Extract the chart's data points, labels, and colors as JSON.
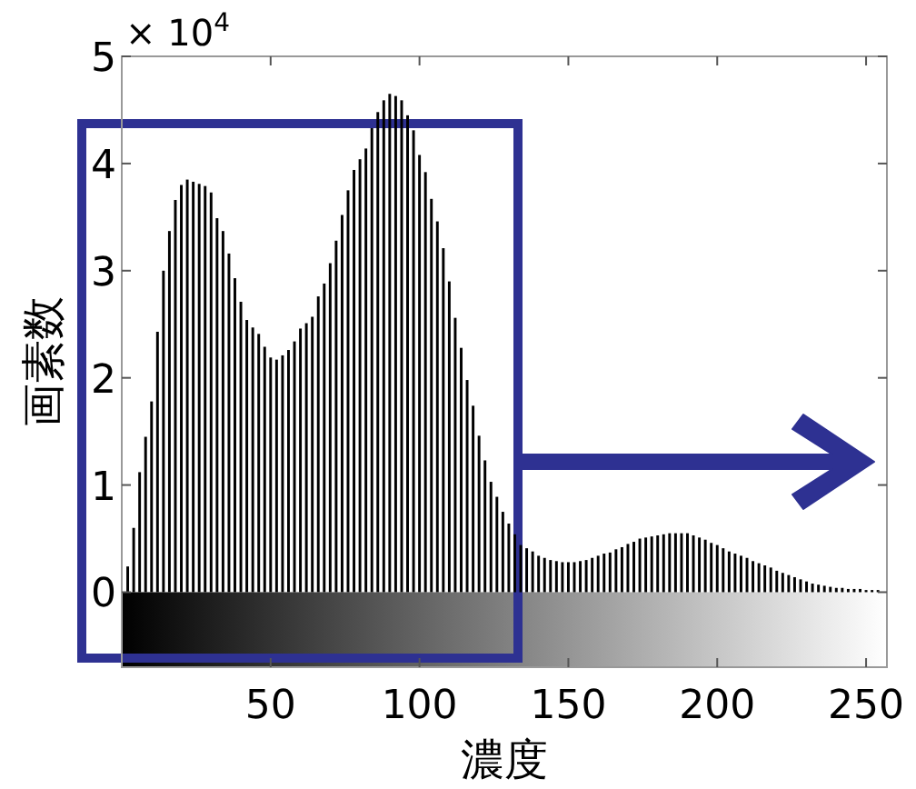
{
  "chart_data": {
    "type": "histogram",
    "xlabel": "濃度",
    "ylabel": "画素数",
    "annotations": [
      "× 10$^{4}$"
    ],
    "bins": [
      1,
      3,
      5,
      7,
      9,
      11,
      13,
      15,
      17,
      19,
      21,
      23,
      25,
      27,
      29,
      31,
      33,
      35,
      37,
      39,
      41,
      43,
      45,
      47,
      49,
      51,
      53,
      55,
      57,
      59,
      61,
      63,
      65,
      67,
      69,
      71,
      73,
      75,
      77,
      79,
      81,
      83,
      85,
      87,
      89,
      91,
      93,
      95,
      97,
      99,
      101,
      103,
      105,
      107,
      109,
      111,
      113,
      115,
      117,
      119,
      121,
      123,
      125,
      127,
      129,
      131,
      133,
      135,
      137,
      139,
      141,
      143,
      145,
      147,
      149,
      151,
      153,
      155,
      157,
      159,
      161,
      163,
      165,
      167,
      169,
      171,
      173,
      175,
      177,
      179,
      181,
      183,
      185,
      187,
      189,
      191,
      193,
      195,
      197,
      199,
      201,
      203,
      205,
      207,
      209,
      211,
      213,
      215,
      217,
      219,
      221,
      223,
      225,
      227,
      229,
      231,
      233,
      235,
      237,
      239,
      241,
      243,
      245,
      247,
      249,
      251,
      253,
      255
    ],
    "values": [
      0.24,
      0.6,
      1.12,
      1.45,
      1.78,
      2.43,
      3.0,
      3.37,
      3.66,
      3.8,
      3.85,
      3.83,
      3.81,
      3.79,
      3.73,
      3.49,
      3.37,
      3.16,
      2.93,
      2.71,
      2.54,
      2.47,
      2.41,
      2.29,
      2.19,
      2.17,
      2.21,
      2.26,
      2.34,
      2.46,
      2.51,
      2.57,
      2.76,
      2.88,
      3.07,
      3.28,
      3.52,
      3.75,
      3.94,
      4.04,
      4.14,
      4.33,
      4.48,
      4.59,
      4.65,
      4.63,
      4.59,
      4.45,
      4.31,
      4.08,
      3.92,
      3.67,
      3.46,
      3.21,
      2.9,
      2.56,
      2.28,
      1.98,
      1.74,
      1.46,
      1.23,
      1.03,
      0.89,
      0.75,
      0.64,
      0.54,
      0.44,
      0.41,
      0.38,
      0.34,
      0.32,
      0.3,
      0.29,
      0.28,
      0.28,
      0.28,
      0.29,
      0.3,
      0.32,
      0.34,
      0.36,
      0.37,
      0.4,
      0.42,
      0.45,
      0.47,
      0.5,
      0.51,
      0.52,
      0.53,
      0.54,
      0.55,
      0.55,
      0.55,
      0.55,
      0.53,
      0.51,
      0.49,
      0.46,
      0.44,
      0.41,
      0.38,
      0.36,
      0.34,
      0.32,
      0.29,
      0.27,
      0.25,
      0.23,
      0.2,
      0.18,
      0.16,
      0.14,
      0.12,
      0.1,
      0.08,
      0.07,
      0.06,
      0.05,
      0.04,
      0.04,
      0.03,
      0.03,
      0.03,
      0.02,
      0.02,
      0.02
    ],
    "color": "#000000",
    "xlim": [
      0,
      257
    ],
    "ylim": [
      -0.7,
      5
    ],
    "xticks": [
      50,
      100,
      150,
      200,
      250
    ],
    "yticks": [
      0,
      1,
      2,
      3,
      4,
      5
    ]
  }
}
